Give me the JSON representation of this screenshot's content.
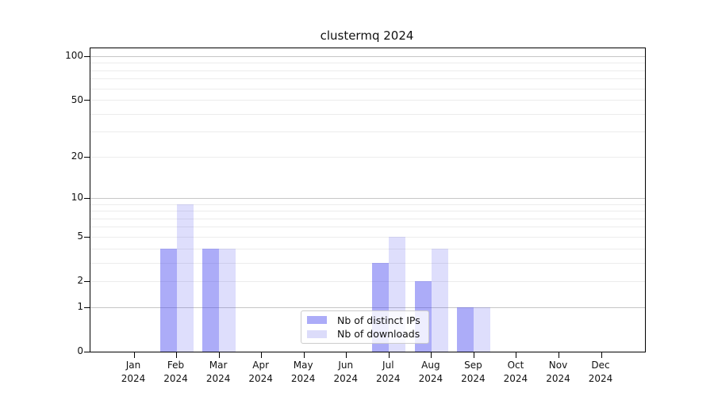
{
  "chart_data": {
    "type": "bar",
    "title": "clustermq 2024",
    "categories": [
      "Jan",
      "Feb",
      "Mar",
      "Apr",
      "May",
      "Jun",
      "Jul",
      "Aug",
      "Sep",
      "Oct",
      "Nov",
      "Dec"
    ],
    "year_label": "2024",
    "series": [
      {
        "name": "Nb of distinct IPs",
        "fill": "rgba(70,70,240,0.45)",
        "solid": "#acacf8",
        "values": [
          0,
          4,
          4,
          0,
          0,
          0,
          3,
          2,
          1,
          0,
          0,
          0
        ]
      },
      {
        "name": "Nb of downloads",
        "fill": "rgba(70,70,240,0.18)",
        "solid": "#dcdcfa",
        "values": [
          0,
          9,
          4,
          0,
          0,
          0,
          5,
          4,
          1,
          0,
          0,
          0
        ]
      }
    ],
    "xlabel": "",
    "ylabel": "",
    "yscale": "log1p",
    "ylim": [
      0,
      114
    ],
    "y_ticks": [
      "0",
      "1",
      "2",
      "5",
      "10",
      "20",
      "50",
      "100"
    ],
    "gridlines": {
      "major": [
        1,
        10,
        100
      ],
      "minor": [
        2,
        3,
        4,
        5,
        6,
        7,
        8,
        9,
        20,
        30,
        40,
        50,
        60,
        70,
        80,
        90
      ]
    },
    "grid": true,
    "legend_position": "lower center",
    "colors": {
      "major_grid": "#c6c6c6",
      "minor_grid": "#ececec",
      "axis": "#000000",
      "text": "#111111",
      "legend_border": "#cccccc"
    }
  }
}
